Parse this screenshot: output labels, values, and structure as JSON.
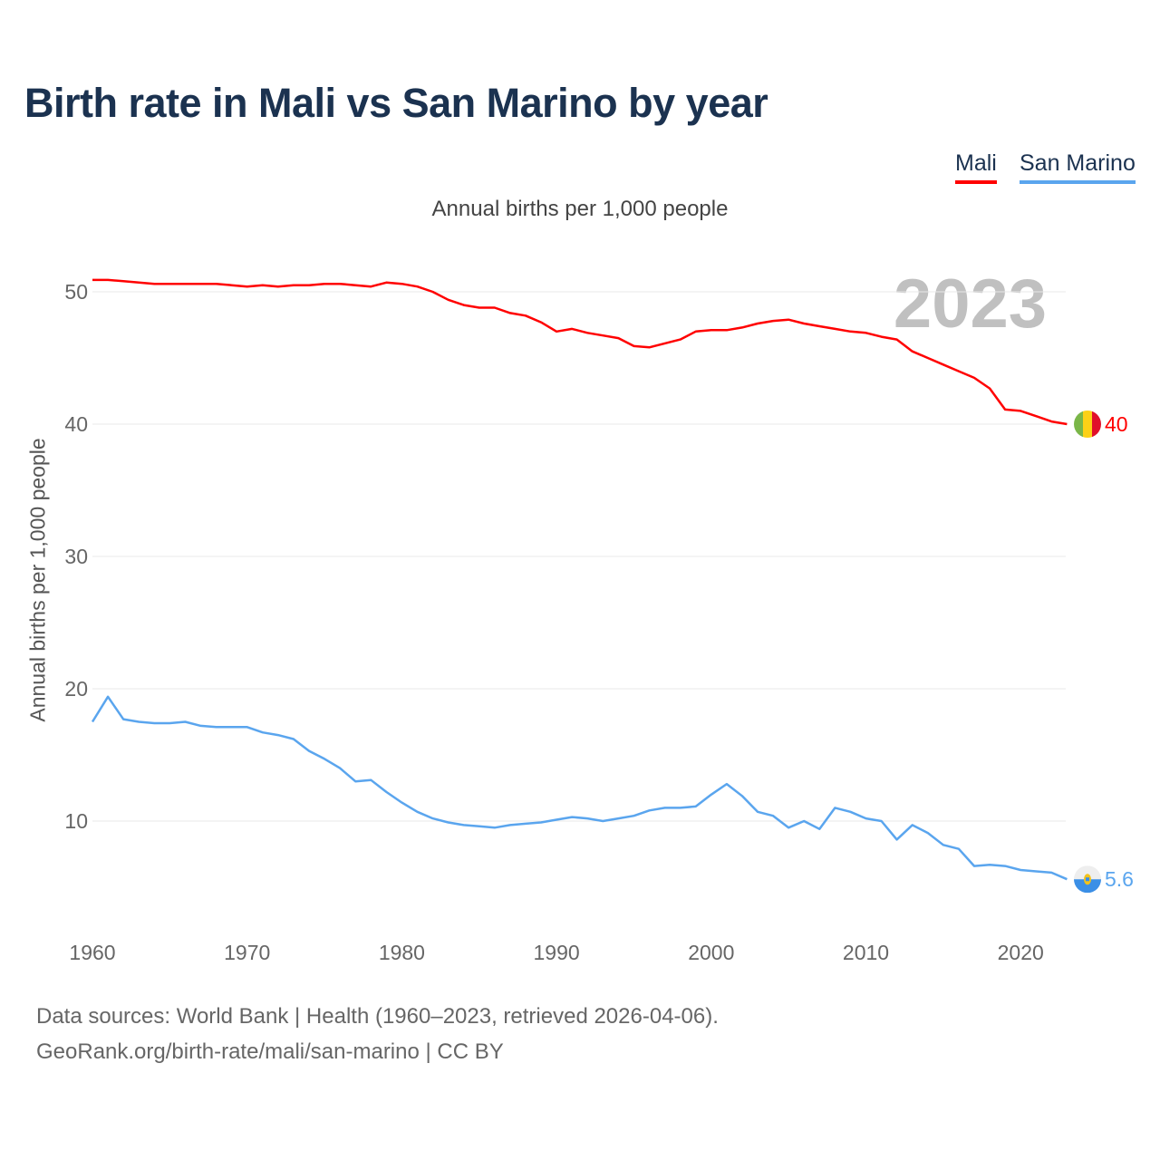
{
  "chart_data": {
    "type": "line",
    "title": "Birth rate in Mali vs San Marino by year",
    "subtitle": "Annual births per 1,000 people",
    "ylabel": "Annual births per 1,000 people",
    "xlabel": "",
    "year_watermark": "2023",
    "xlim": [
      1960,
      2023
    ],
    "ylim": [
      3,
      54
    ],
    "yticks": [
      10,
      20,
      30,
      40,
      50
    ],
    "xticks": [
      1960,
      1970,
      1980,
      1990,
      2000,
      2010,
      2020
    ],
    "grid": true,
    "legend_position": "top-right",
    "x_start": 1960,
    "series": [
      {
        "name": "Mali",
        "color": "#ff0000",
        "end_label": "40",
        "values": [
          50.9,
          50.9,
          50.8,
          50.7,
          50.6,
          50.6,
          50.6,
          50.6,
          50.6,
          50.5,
          50.4,
          50.5,
          50.4,
          50.5,
          50.5,
          50.6,
          50.6,
          50.5,
          50.4,
          50.7,
          50.6,
          50.4,
          50.0,
          49.4,
          49.0,
          48.8,
          48.8,
          48.4,
          48.2,
          47.7,
          47.0,
          47.2,
          46.9,
          46.7,
          46.5,
          45.9,
          45.8,
          46.1,
          46.4,
          47.0,
          47.1,
          47.1,
          47.3,
          47.6,
          47.8,
          47.9,
          47.6,
          47.4,
          47.2,
          47.0,
          46.9,
          46.6,
          46.4,
          45.5,
          45.0,
          44.5,
          44.0,
          43.5,
          42.7,
          41.1,
          41.0,
          40.6,
          40.2,
          40.0
        ]
      },
      {
        "name": "San Marino",
        "color": "#5aa5ee",
        "end_label": "5.6",
        "values": [
          17.5,
          19.4,
          17.7,
          17.5,
          17.4,
          17.4,
          17.5,
          17.2,
          17.1,
          17.1,
          17.1,
          16.7,
          16.5,
          16.2,
          15.3,
          14.7,
          14.0,
          13.0,
          13.1,
          12.2,
          11.4,
          10.7,
          10.2,
          9.9,
          9.7,
          9.6,
          9.5,
          9.7,
          9.8,
          9.9,
          10.1,
          10.3,
          10.2,
          10.0,
          10.2,
          10.4,
          10.8,
          11.0,
          11.0,
          11.1,
          12.0,
          12.8,
          11.9,
          10.7,
          10.4,
          9.5,
          10.0,
          9.4,
          11.0,
          10.7,
          10.2,
          10.0,
          8.6,
          9.7,
          9.1,
          8.2,
          7.9,
          6.6,
          6.7,
          6.6,
          6.3,
          6.2,
          6.1,
          5.6
        ]
      }
    ]
  },
  "footer": {
    "source": "Data sources: World Bank | Health (1960–2023, retrieved 2026-04-06).",
    "credit": "GeoRank.org/birth-rate/mali/san-marino | CC BY"
  }
}
